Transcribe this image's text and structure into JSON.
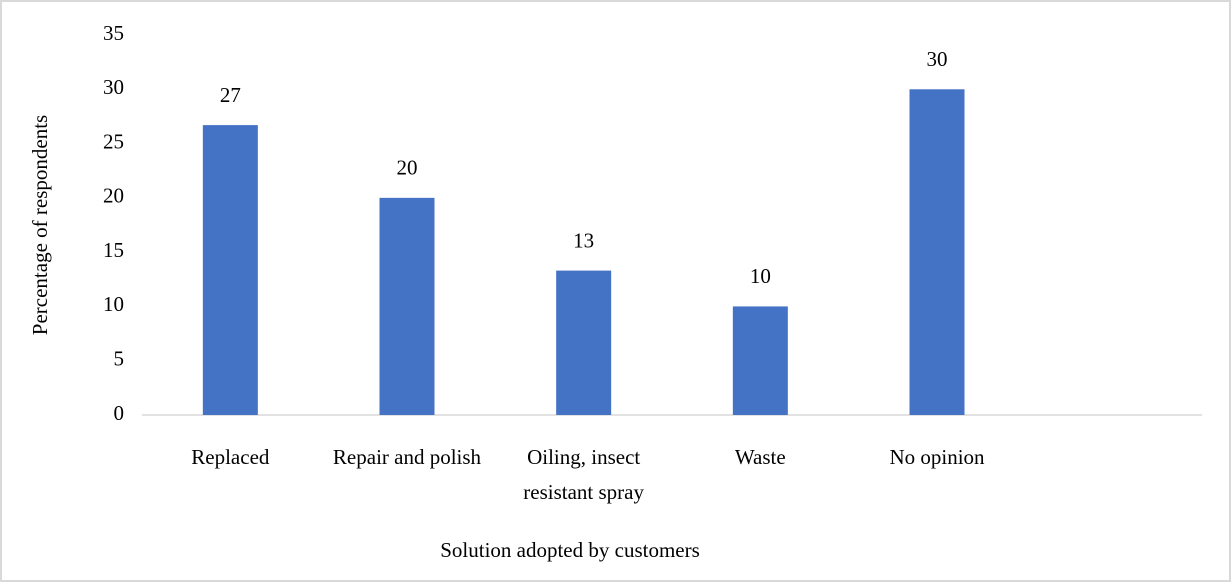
{
  "chart_data": {
    "type": "bar",
    "x_label": "Solution adopted by customers",
    "y_label": "Percentage of respondents",
    "categories": [
      "Replaced",
      "Repair and polish",
      "Oiling, insect resistant spray",
      "Waste",
      "No opinion",
      null
    ],
    "values": [
      26.7,
      20,
      13.3,
      10,
      30,
      null
    ],
    "value_labels": [
      "27",
      "20",
      "13",
      "10",
      "30",
      null
    ],
    "color": "#4472c4",
    "ylim": [
      0,
      35
    ],
    "yticks": [
      0,
      5,
      10,
      15,
      20,
      25,
      30,
      35
    ],
    "grid": false
  }
}
